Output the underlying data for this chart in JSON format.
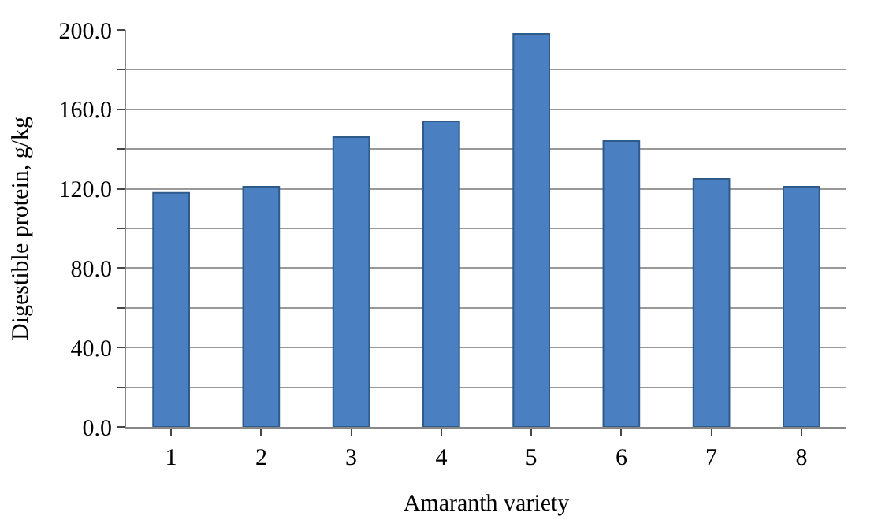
{
  "chart_data": {
    "type": "bar",
    "xlabel": "Amaranth variety",
    "ylabel": "Digestible protein, g/kg",
    "categories": [
      "1",
      "2",
      "3",
      "4",
      "5",
      "6",
      "7",
      "8"
    ],
    "values": [
      118,
      121,
      146,
      154,
      198,
      144,
      125,
      121
    ],
    "color": "#4a7fc1",
    "ylim": [
      0,
      200
    ],
    "yticks": [
      {
        "value": 0,
        "label": "0.0"
      },
      {
        "value": 20,
        "label": null
      },
      {
        "value": 40,
        "label": "40.0"
      },
      {
        "value": 60,
        "label": null
      },
      {
        "value": 80,
        "label": "80.0"
      },
      {
        "value": 100,
        "label": null
      },
      {
        "value": 120,
        "label": "120.0"
      },
      {
        "value": 140,
        "label": null
      },
      {
        "value": 160,
        "label": "160.0"
      },
      {
        "value": 180,
        "label": null
      },
      {
        "value": 200,
        "label": "200.0"
      }
    ],
    "grid": "y",
    "legend": false
  }
}
